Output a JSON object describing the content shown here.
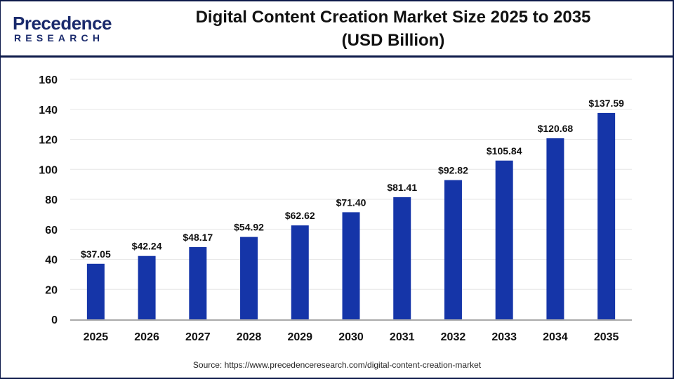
{
  "logo": {
    "main": "Precedence",
    "sub": "RESEARCH"
  },
  "chart_data": {
    "type": "bar",
    "title_line1": "Digital Content Creation Market Size 2025 to 2035",
    "title_line2": "(USD Billion)",
    "categories": [
      "2025",
      "2026",
      "2027",
      "2028",
      "2029",
      "2030",
      "2031",
      "2032",
      "2033",
      "2034",
      "2035"
    ],
    "values": [
      37.05,
      42.24,
      48.17,
      54.92,
      62.62,
      71.4,
      81.41,
      92.82,
      105.84,
      120.68,
      137.59
    ],
    "labels": [
      "$37.05",
      "$42.24",
      "$48.17",
      "$54.92",
      "$62.62",
      "$71.40",
      "$81.41",
      "$92.82",
      "$105.84",
      "$120.68",
      "$137.59"
    ],
    "ylim": [
      0,
      160
    ],
    "yticks": [
      "0",
      "20",
      "40",
      "60",
      "80",
      "100",
      "120",
      "140",
      "160"
    ],
    "grid": true,
    "bar_color": "#1535a8",
    "xlabel": "",
    "ylabel": ""
  },
  "source": "Source: https://www.precedenceresearch.com/digital-content-creation-market"
}
